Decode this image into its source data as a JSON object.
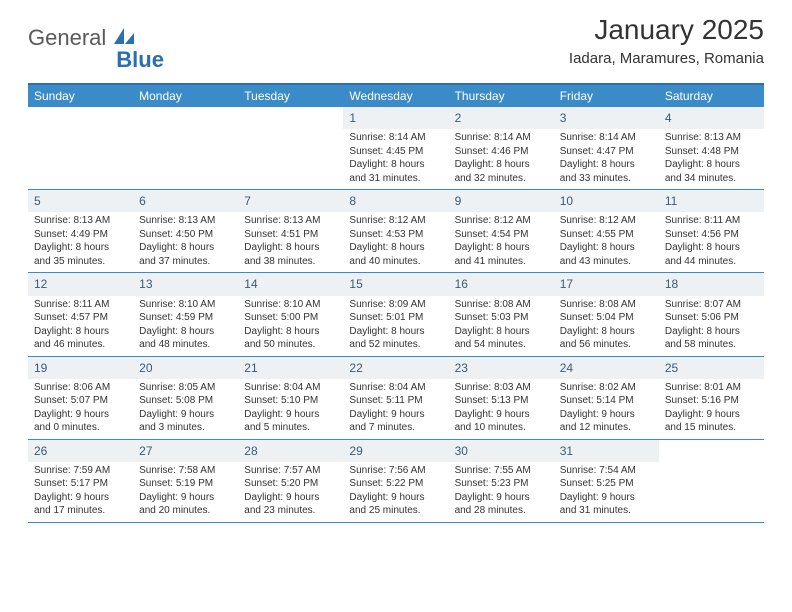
{
  "brand": {
    "part1": "General",
    "part2": "Blue"
  },
  "title": "January 2025",
  "location": "Iadara, Maramures, Romania",
  "colors": {
    "header_bg": "#3b8bc9",
    "border": "#2a6fb0",
    "daynum_bg": "#eef1f4",
    "daynum_fg": "#3a5a78",
    "text": "#333333",
    "week_border": "#3b8bc9"
  },
  "weekdays": [
    "Sunday",
    "Monday",
    "Tuesday",
    "Wednesday",
    "Thursday",
    "Friday",
    "Saturday"
  ],
  "weeks": [
    [
      {
        "n": "",
        "l1": "",
        "l2": "",
        "l3": "",
        "l4": ""
      },
      {
        "n": "",
        "l1": "",
        "l2": "",
        "l3": "",
        "l4": ""
      },
      {
        "n": "",
        "l1": "",
        "l2": "",
        "l3": "",
        "l4": ""
      },
      {
        "n": "1",
        "l1": "Sunrise: 8:14 AM",
        "l2": "Sunset: 4:45 PM",
        "l3": "Daylight: 8 hours",
        "l4": "and 31 minutes."
      },
      {
        "n": "2",
        "l1": "Sunrise: 8:14 AM",
        "l2": "Sunset: 4:46 PM",
        "l3": "Daylight: 8 hours",
        "l4": "and 32 minutes."
      },
      {
        "n": "3",
        "l1": "Sunrise: 8:14 AM",
        "l2": "Sunset: 4:47 PM",
        "l3": "Daylight: 8 hours",
        "l4": "and 33 minutes."
      },
      {
        "n": "4",
        "l1": "Sunrise: 8:13 AM",
        "l2": "Sunset: 4:48 PM",
        "l3": "Daylight: 8 hours",
        "l4": "and 34 minutes."
      }
    ],
    [
      {
        "n": "5",
        "l1": "Sunrise: 8:13 AM",
        "l2": "Sunset: 4:49 PM",
        "l3": "Daylight: 8 hours",
        "l4": "and 35 minutes."
      },
      {
        "n": "6",
        "l1": "Sunrise: 8:13 AM",
        "l2": "Sunset: 4:50 PM",
        "l3": "Daylight: 8 hours",
        "l4": "and 37 minutes."
      },
      {
        "n": "7",
        "l1": "Sunrise: 8:13 AM",
        "l2": "Sunset: 4:51 PM",
        "l3": "Daylight: 8 hours",
        "l4": "and 38 minutes."
      },
      {
        "n": "8",
        "l1": "Sunrise: 8:12 AM",
        "l2": "Sunset: 4:53 PM",
        "l3": "Daylight: 8 hours",
        "l4": "and 40 minutes."
      },
      {
        "n": "9",
        "l1": "Sunrise: 8:12 AM",
        "l2": "Sunset: 4:54 PM",
        "l3": "Daylight: 8 hours",
        "l4": "and 41 minutes."
      },
      {
        "n": "10",
        "l1": "Sunrise: 8:12 AM",
        "l2": "Sunset: 4:55 PM",
        "l3": "Daylight: 8 hours",
        "l4": "and 43 minutes."
      },
      {
        "n": "11",
        "l1": "Sunrise: 8:11 AM",
        "l2": "Sunset: 4:56 PM",
        "l3": "Daylight: 8 hours",
        "l4": "and 44 minutes."
      }
    ],
    [
      {
        "n": "12",
        "l1": "Sunrise: 8:11 AM",
        "l2": "Sunset: 4:57 PM",
        "l3": "Daylight: 8 hours",
        "l4": "and 46 minutes."
      },
      {
        "n": "13",
        "l1": "Sunrise: 8:10 AM",
        "l2": "Sunset: 4:59 PM",
        "l3": "Daylight: 8 hours",
        "l4": "and 48 minutes."
      },
      {
        "n": "14",
        "l1": "Sunrise: 8:10 AM",
        "l2": "Sunset: 5:00 PM",
        "l3": "Daylight: 8 hours",
        "l4": "and 50 minutes."
      },
      {
        "n": "15",
        "l1": "Sunrise: 8:09 AM",
        "l2": "Sunset: 5:01 PM",
        "l3": "Daylight: 8 hours",
        "l4": "and 52 minutes."
      },
      {
        "n": "16",
        "l1": "Sunrise: 8:08 AM",
        "l2": "Sunset: 5:03 PM",
        "l3": "Daylight: 8 hours",
        "l4": "and 54 minutes."
      },
      {
        "n": "17",
        "l1": "Sunrise: 8:08 AM",
        "l2": "Sunset: 5:04 PM",
        "l3": "Daylight: 8 hours",
        "l4": "and 56 minutes."
      },
      {
        "n": "18",
        "l1": "Sunrise: 8:07 AM",
        "l2": "Sunset: 5:06 PM",
        "l3": "Daylight: 8 hours",
        "l4": "and 58 minutes."
      }
    ],
    [
      {
        "n": "19",
        "l1": "Sunrise: 8:06 AM",
        "l2": "Sunset: 5:07 PM",
        "l3": "Daylight: 9 hours",
        "l4": "and 0 minutes."
      },
      {
        "n": "20",
        "l1": "Sunrise: 8:05 AM",
        "l2": "Sunset: 5:08 PM",
        "l3": "Daylight: 9 hours",
        "l4": "and 3 minutes."
      },
      {
        "n": "21",
        "l1": "Sunrise: 8:04 AM",
        "l2": "Sunset: 5:10 PM",
        "l3": "Daylight: 9 hours",
        "l4": "and 5 minutes."
      },
      {
        "n": "22",
        "l1": "Sunrise: 8:04 AM",
        "l2": "Sunset: 5:11 PM",
        "l3": "Daylight: 9 hours",
        "l4": "and 7 minutes."
      },
      {
        "n": "23",
        "l1": "Sunrise: 8:03 AM",
        "l2": "Sunset: 5:13 PM",
        "l3": "Daylight: 9 hours",
        "l4": "and 10 minutes."
      },
      {
        "n": "24",
        "l1": "Sunrise: 8:02 AM",
        "l2": "Sunset: 5:14 PM",
        "l3": "Daylight: 9 hours",
        "l4": "and 12 minutes."
      },
      {
        "n": "25",
        "l1": "Sunrise: 8:01 AM",
        "l2": "Sunset: 5:16 PM",
        "l3": "Daylight: 9 hours",
        "l4": "and 15 minutes."
      }
    ],
    [
      {
        "n": "26",
        "l1": "Sunrise: 7:59 AM",
        "l2": "Sunset: 5:17 PM",
        "l3": "Daylight: 9 hours",
        "l4": "and 17 minutes."
      },
      {
        "n": "27",
        "l1": "Sunrise: 7:58 AM",
        "l2": "Sunset: 5:19 PM",
        "l3": "Daylight: 9 hours",
        "l4": "and 20 minutes."
      },
      {
        "n": "28",
        "l1": "Sunrise: 7:57 AM",
        "l2": "Sunset: 5:20 PM",
        "l3": "Daylight: 9 hours",
        "l4": "and 23 minutes."
      },
      {
        "n": "29",
        "l1": "Sunrise: 7:56 AM",
        "l2": "Sunset: 5:22 PM",
        "l3": "Daylight: 9 hours",
        "l4": "and 25 minutes."
      },
      {
        "n": "30",
        "l1": "Sunrise: 7:55 AM",
        "l2": "Sunset: 5:23 PM",
        "l3": "Daylight: 9 hours",
        "l4": "and 28 minutes."
      },
      {
        "n": "31",
        "l1": "Sunrise: 7:54 AM",
        "l2": "Sunset: 5:25 PM",
        "l3": "Daylight: 9 hours",
        "l4": "and 31 minutes."
      },
      {
        "n": "",
        "l1": "",
        "l2": "",
        "l3": "",
        "l4": ""
      }
    ]
  ]
}
